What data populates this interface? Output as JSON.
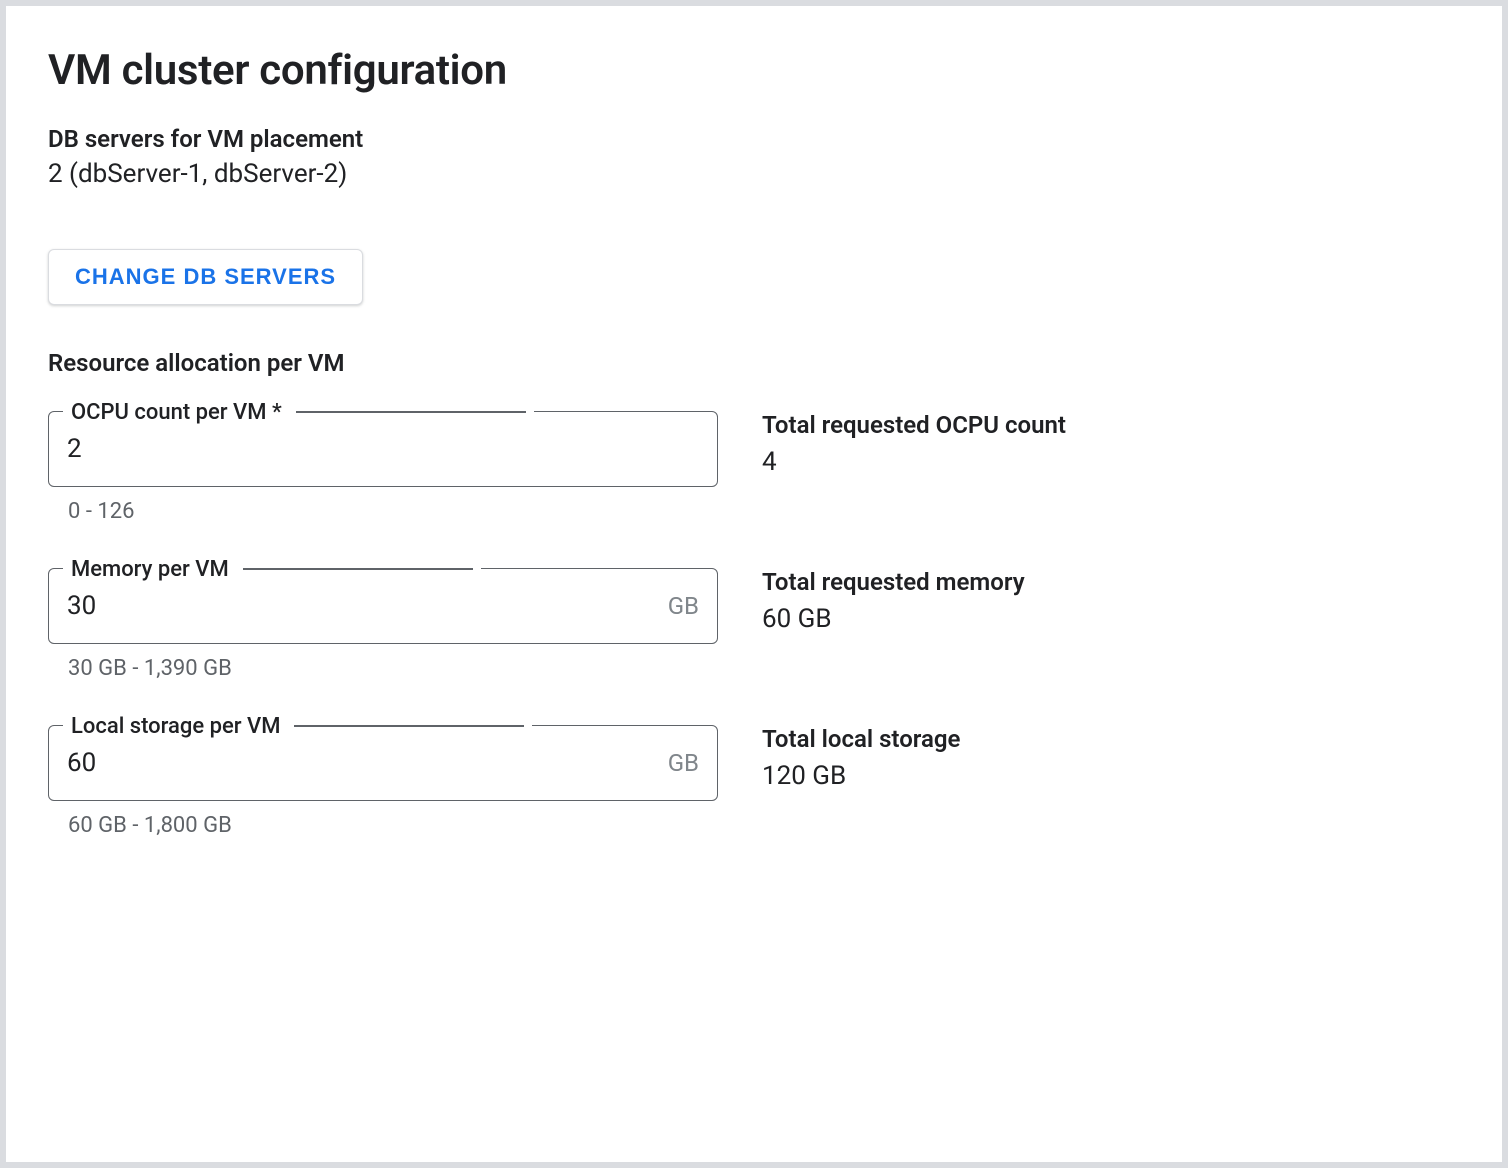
{
  "title": "VM cluster configuration",
  "db_placement": {
    "label": "DB servers for VM placement",
    "value": "2 (dbServer-1, dbServer-2)"
  },
  "change_button_label": "CHANGE DB SERVERS",
  "resource_section_heading": "Resource allocation per VM",
  "fields": {
    "ocpu": {
      "label": "OCPU count per VM *",
      "value": "2",
      "helper": "0 - 126",
      "total_label": "Total requested OCPU count",
      "total_value": "4"
    },
    "memory": {
      "label": "Memory per VM",
      "value": "30",
      "suffix": "GB",
      "helper": "30 GB - 1,390 GB",
      "total_label": "Total requested memory",
      "total_value": "60 GB"
    },
    "storage": {
      "label": "Local storage per VM",
      "value": "60",
      "suffix": "GB",
      "helper": "60 GB - 1,800 GB",
      "total_label": "Total local storage",
      "total_value": "120 GB"
    }
  },
  "colors": {
    "page_bg": "#dadce0",
    "panel_bg": "#ffffff",
    "text_primary": "#202124",
    "text_secondary": "#5f6368",
    "suffix": "#80868b",
    "accent_blue": "#1a73e8",
    "border": "#5f6368",
    "button_border": "#dadce0"
  },
  "typography": {
    "title_fontsize": 42,
    "label_fontsize": 24,
    "value_fontsize": 26,
    "helper_fontsize": 22,
    "button_fontsize": 22
  }
}
